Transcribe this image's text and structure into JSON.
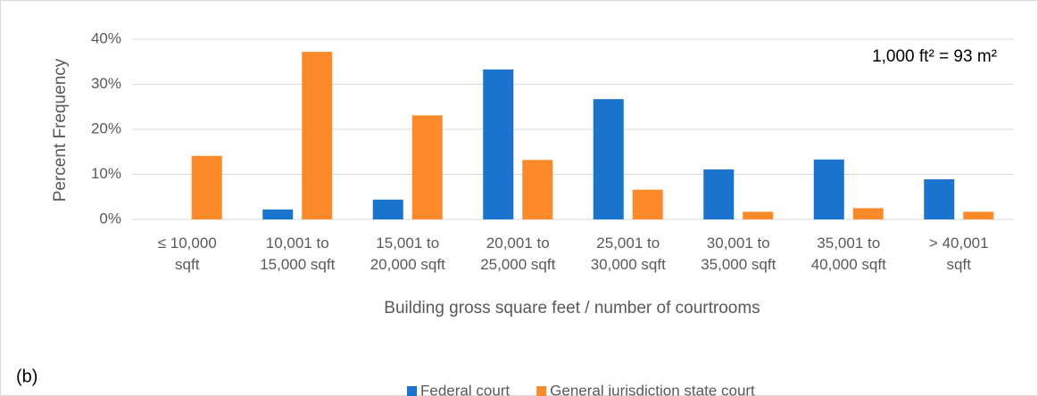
{
  "chart_data": {
    "type": "bar",
    "panel_label": "(b)",
    "annotation": "1,000 ft² = 93 m²",
    "y_label": "Percent Frequency",
    "x_label": "Building gross square feet / number of courtrooms",
    "categories": [
      "≤ 10,000\nsqft",
      "10,001 to\n15,000 sqft",
      "15,001 to\n20,000 sqft",
      "20,001 to\n25,000 sqft",
      "25,001 to\n30,000 sqft",
      "30,001 to\n35,000 sqft",
      "35,001 to\n40,000 sqft",
      "> 40,001\nsqft"
    ],
    "series": [
      {
        "name": "Federal court",
        "color": "#1a73cc",
        "values": [
          0,
          2.2,
          4.4,
          33.3,
          26.7,
          11.1,
          13.3,
          8.9
        ]
      },
      {
        "name": "General jurisdiction state court",
        "color": "#fd8a2a",
        "values": [
          14.1,
          37.2,
          23.1,
          13.2,
          6.6,
          1.7,
          2.5,
          1.7
        ]
      }
    ],
    "ylim": [
      0,
      40
    ],
    "yticks": [
      {
        "value": 0,
        "label": "0%"
      },
      {
        "value": 10,
        "label": "10%"
      },
      {
        "value": 20,
        "label": "20%"
      },
      {
        "value": 30,
        "label": "30%"
      },
      {
        "value": 40,
        "label": "40%"
      }
    ],
    "grid": true,
    "legend": "bottom"
  }
}
